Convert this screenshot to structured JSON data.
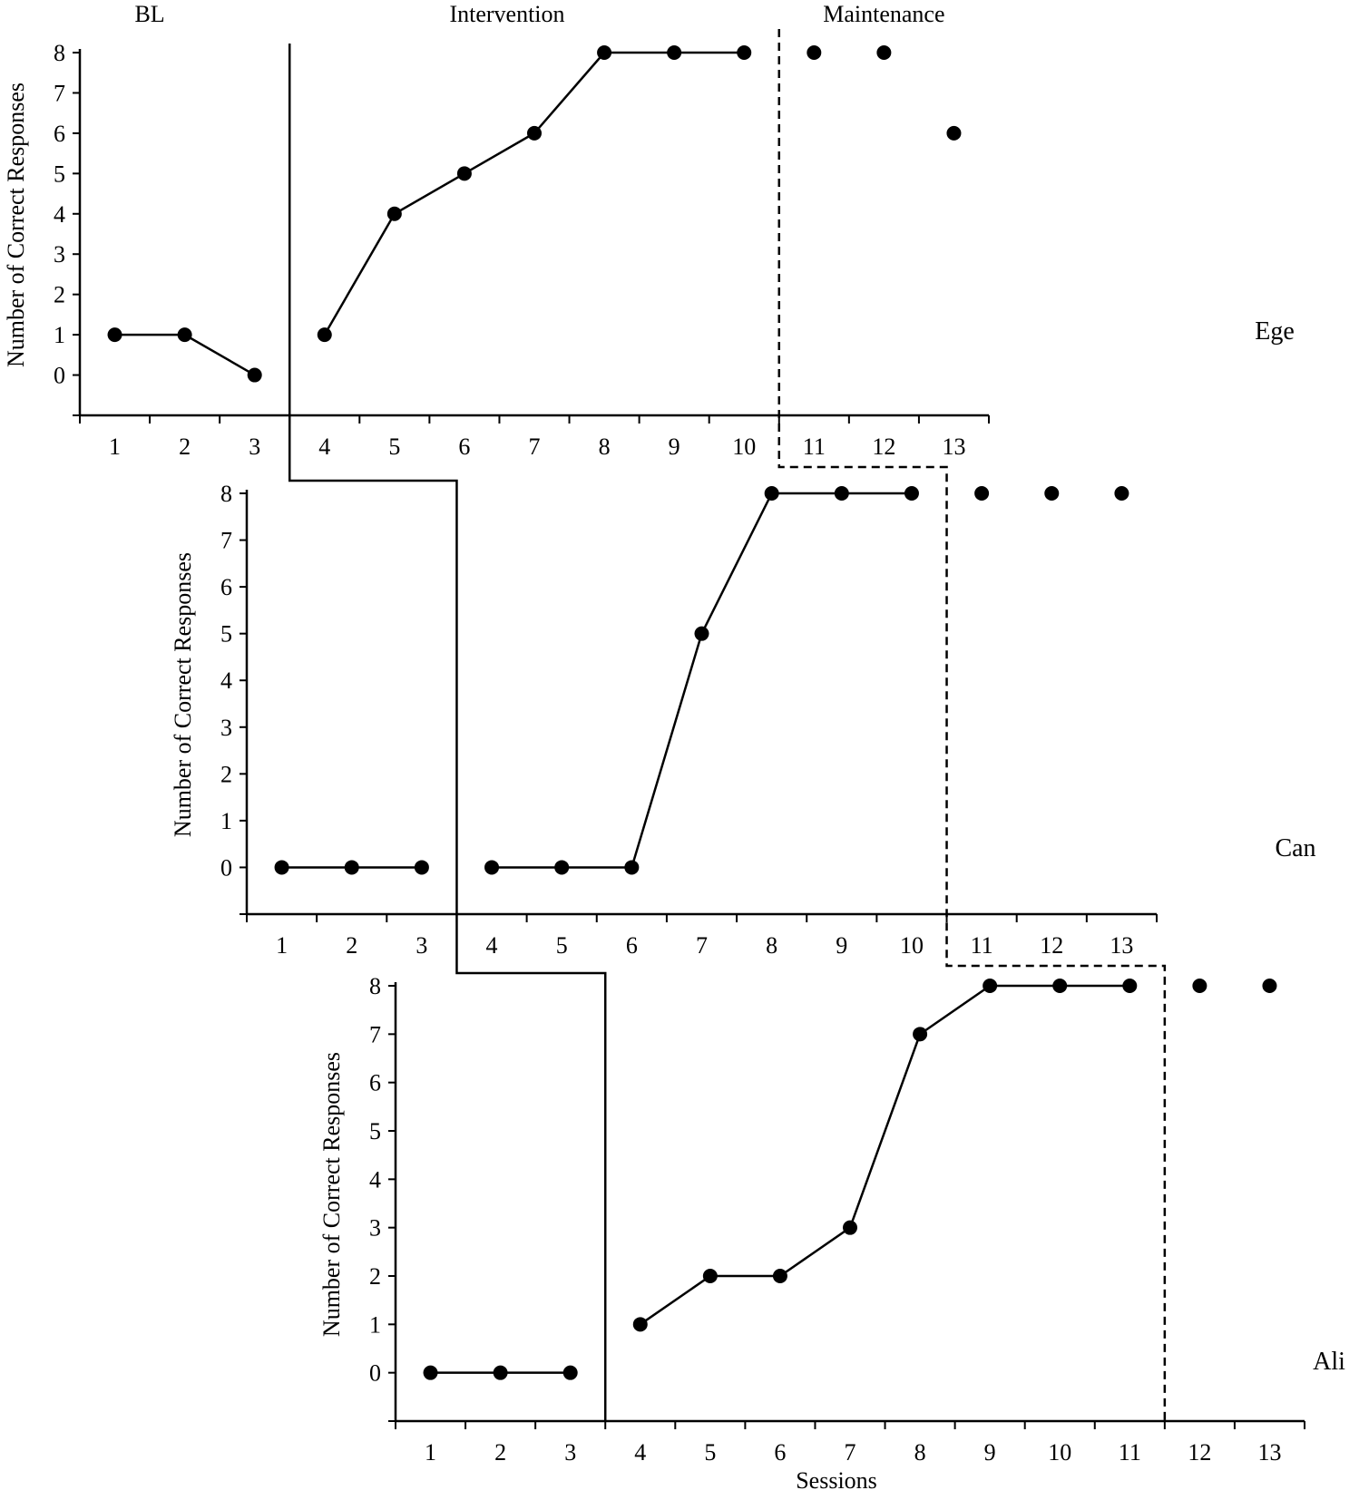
{
  "chart_data": {
    "type": "line",
    "phases": [
      "BL",
      "Intervention",
      "Maintenance"
    ],
    "xlabel": "Sessions",
    "ylabel": "Number of Correct Responses",
    "panels": [
      {
        "participant": "Ege",
        "x": [
          1,
          2,
          3,
          4,
          5,
          6,
          7,
          8,
          9,
          10,
          11,
          12,
          13
        ],
        "values": [
          1,
          1,
          0,
          1,
          4,
          5,
          6,
          8,
          8,
          8,
          8,
          8,
          6
        ],
        "xlim": [
          0.5,
          13.5
        ],
        "ylim": [
          -1,
          8
        ],
        "yticks": [
          0,
          1,
          2,
          3,
          4,
          5,
          6,
          7,
          8
        ],
        "baseline_end": 3,
        "intervention_end": 10
      },
      {
        "participant": "Can",
        "x": [
          1,
          2,
          3,
          4,
          5,
          6,
          7,
          8,
          9,
          10,
          11,
          12,
          13
        ],
        "values": [
          0,
          0,
          0,
          0,
          0,
          0,
          5,
          8,
          8,
          8,
          8,
          8,
          8
        ],
        "xlim": [
          0.5,
          13.5
        ],
        "ylim": [
          -1,
          8
        ],
        "yticks": [
          0,
          1,
          2,
          3,
          4,
          5,
          6,
          7,
          8
        ],
        "baseline_end": 3,
        "intervention_end": 10
      },
      {
        "participant": "Ali",
        "x": [
          1,
          2,
          3,
          4,
          5,
          6,
          7,
          8,
          9,
          10,
          11,
          12,
          13
        ],
        "values": [
          0,
          0,
          0,
          1,
          2,
          2,
          3,
          7,
          8,
          8,
          8,
          8,
          8
        ],
        "xlim": [
          0.5,
          13.5
        ],
        "ylim": [
          -1,
          8
        ],
        "yticks": [
          0,
          1,
          2,
          3,
          4,
          5,
          6,
          7,
          8
        ],
        "baseline_end": 3,
        "intervention_end": 11
      }
    ],
    "grid": false,
    "legend": "none"
  }
}
